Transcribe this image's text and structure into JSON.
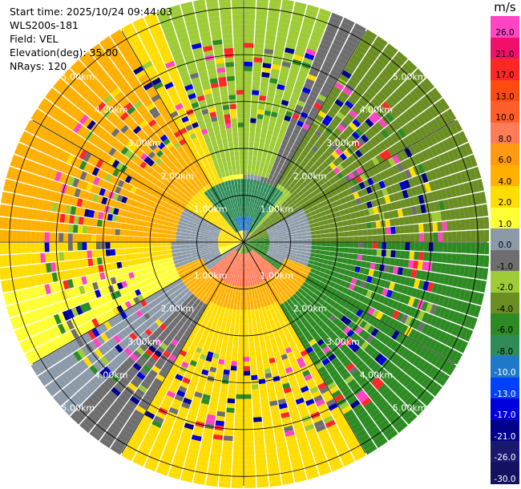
{
  "info": {
    "start_time": "Start time: 2025/10/24 09:44:03",
    "station": "WLS200s-181",
    "field": "Field: VEL",
    "elevation": "Elevation(deg): 35.00",
    "nrays": "NRays: 120"
  },
  "colorbar": {
    "unit": "m/s",
    "labels": [
      "26.0",
      "21.0",
      "17.0",
      "13.0",
      "10.0",
      "8.0",
      "6.0",
      "4.0",
      "2.0",
      "1.0",
      "0.0",
      "-1.0",
      "-2.0",
      "-4.0",
      "-6.0",
      "-8.0",
      "-10.0",
      "-13.0",
      "-17.0",
      "-21.0",
      "-26.0",
      "-30.0"
    ],
    "colors": [
      "#ff44c4",
      "#f0106a",
      "#ff2626",
      "#ff4a12",
      "#ff5e2a",
      "#ff7c58",
      "#ff9a12",
      "#ffb000",
      "#ffdd00",
      "#ffff33",
      "#8c9aa8",
      "#6e6e6e",
      "#9ecb36",
      "#6b8e23",
      "#2e8b24",
      "#2e8b57",
      "#1f78c8",
      "#0040ff",
      "#0000dd",
      "#00008b",
      "#191970",
      "#121260"
    ]
  },
  "chart_data": {
    "type": "ppi",
    "field": "VEL",
    "unit": "m/s",
    "nrays": 120,
    "elevation_deg": 35.0,
    "range_rings_km": [
      1.0,
      2.0,
      3.0,
      4.0,
      5.0
    ],
    "range_labels": [
      "1.00km",
      "2.00km",
      "3.00km",
      "4.00km",
      "5.00km"
    ],
    "max_range_km": 5.2,
    "radial_spokes_deg": [
      0,
      30,
      60,
      90,
      120,
      150,
      180,
      210,
      240,
      270,
      300,
      330
    ],
    "grid": true,
    "color_limits": [
      -30.0,
      26.0
    ],
    "sector_bins": [
      {
        "azimuth_deg": [
          320,
          40
        ],
        "range_km": [
          0.3,
          1.4
        ],
        "velocity": -7.0
      },
      {
        "azimuth_deg": [
          340,
          20
        ],
        "range_km": [
          0.3,
          0.6
        ],
        "velocity": -10.0
      },
      {
        "azimuth_deg": [
          60,
          120
        ],
        "range_km": [
          0.5,
          1.5
        ],
        "velocity": 0.0
      },
      {
        "azimuth_deg": [
          240,
          300
        ],
        "range_km": [
          0.5,
          1.6
        ],
        "velocity": 0.0
      },
      {
        "azimuth_deg": [
          130,
          230
        ],
        "range_km": [
          0.3,
          0.9
        ],
        "velocity": 8.0
      },
      {
        "azimuth_deg": [
          110,
          250
        ],
        "range_km": [
          0.9,
          1.6
        ],
        "velocity": 4.0
      },
      {
        "azimuth_deg": [
          30,
          90
        ],
        "range_km": [
          1.5,
          5.2
        ],
        "velocity": -4.0
      },
      {
        "azimuth_deg": [
          270,
          330
        ],
        "range_km": [
          1.5,
          5.2
        ],
        "velocity": 4.0
      },
      {
        "azimuth_deg": [
          150,
          210
        ],
        "range_km": [
          1.5,
          5.2
        ],
        "velocity": 3.0
      },
      {
        "azimuth_deg": [
          340,
          20
        ],
        "range_km": [
          1.5,
          5.2
        ],
        "velocity": -2.0
      }
    ]
  }
}
